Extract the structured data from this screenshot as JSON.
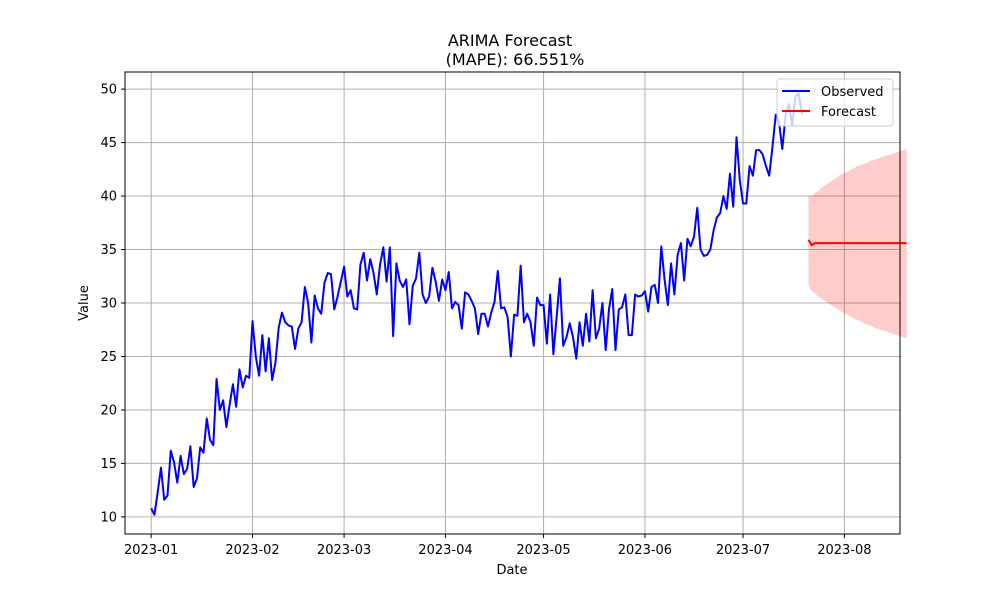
{
  "chart_data": {
    "type": "line",
    "title": "ARIMA Forecast",
    "subtitle": "(MAPE): 66.551%",
    "xlabel": "Date",
    "ylabel": "Value",
    "grid": true,
    "legend_position": "top-right",
    "x_start_date": "2023-01-01",
    "xlim": [
      -8,
      229
    ],
    "ylim": [
      8.4,
      51.6
    ],
    "x_ticks": [
      {
        "day": 0,
        "label": "2023-01"
      },
      {
        "day": 31,
        "label": "2023-02"
      },
      {
        "day": 59,
        "label": "2023-03"
      },
      {
        "day": 90,
        "label": "2023-04"
      },
      {
        "day": 120,
        "label": "2023-05"
      },
      {
        "day": 151,
        "label": "2023-06"
      },
      {
        "day": 181,
        "label": "2023-07"
      },
      {
        "day": 212,
        "label": "2023-08"
      }
    ],
    "y_ticks": [
      10,
      15,
      20,
      25,
      30,
      35,
      40,
      45,
      50
    ],
    "colors": {
      "observed": "#0000ff",
      "forecast": "#ff0000",
      "band": "#ff0000",
      "grid": "#b0b0b0"
    },
    "series": [
      {
        "name": "Observed",
        "x_start": 0,
        "values": [
          10.8,
          10.2,
          12.3,
          14.6,
          11.6,
          12.0,
          16.2,
          15.1,
          13.2,
          15.7,
          14.0,
          14.5,
          16.6,
          12.8,
          13.6,
          16.5,
          16.0,
          19.2,
          17.2,
          16.7,
          22.9,
          20.0,
          20.9,
          18.4,
          20.5,
          22.4,
          20.3,
          23.8,
          22.1,
          23.2,
          23.0,
          28.3,
          25.0,
          23.2,
          27.0,
          23.6,
          26.7,
          22.8,
          24.4,
          27.7,
          29.1,
          28.2,
          27.9,
          27.8,
          25.7,
          27.6,
          28.2,
          31.5,
          30.0,
          26.3,
          30.7,
          29.5,
          29.0,
          31.9,
          32.8,
          32.7,
          29.4,
          30.6,
          32.0,
          33.4,
          30.6,
          31.2,
          29.5,
          29.4,
          33.6,
          34.7,
          32.1,
          34.1,
          32.8,
          30.8,
          33.6,
          35.2,
          32.0,
          35.2,
          26.9,
          33.7,
          32.1,
          31.5,
          32.2,
          28.0,
          31.6,
          32.3,
          34.7,
          30.8,
          30.0,
          30.6,
          33.3,
          32.0,
          30.2,
          32.2,
          31.2,
          32.9,
          29.5,
          30.1,
          29.8,
          27.6,
          31.0,
          30.8,
          30.2,
          29.5,
          27.1,
          29.0,
          29.0,
          27.8,
          29.1,
          30.1,
          33.0,
          29.5,
          29.6,
          28.7,
          25.0,
          28.9,
          28.8,
          33.5,
          28.2,
          29.0,
          28.2,
          26.0,
          30.5,
          29.8,
          29.8,
          26.2,
          30.8,
          25.2,
          28.7,
          32.3,
          26.0,
          26.8,
          28.1,
          26.8,
          24.8,
          28.2,
          26.0,
          29.0,
          26.4,
          31.2,
          26.7,
          27.6,
          30.0,
          25.6,
          29.4,
          31.3,
          25.6,
          29.4,
          29.6,
          30.8,
          27.0,
          27.0,
          30.8,
          30.6,
          30.7,
          31.1,
          29.2,
          31.5,
          31.7,
          30.0,
          35.3,
          32.2,
          29.8,
          33.7,
          30.8,
          34.5,
          35.6,
          32.1,
          36.0,
          35.3,
          36.2,
          38.9,
          35.0,
          34.4,
          34.5,
          35.0,
          36.8,
          38.0,
          38.4,
          40.0,
          38.8,
          42.1,
          39.0,
          45.5,
          41.5,
          39.3,
          39.3,
          42.8,
          41.9,
          44.3,
          44.3,
          43.9,
          42.8,
          41.9,
          44.6,
          47.6,
          46.9,
          44.4,
          47.5,
          48.6,
          46.6,
          49.3,
          49.6,
          47.7
        ]
      },
      {
        "name": "Forecast",
        "x_start": 201,
        "values": [
          35.9,
          35.4,
          35.6,
          35.6,
          35.6,
          35.6,
          35.6,
          35.6,
          35.6,
          35.6,
          35.6,
          35.6,
          35.6,
          35.6,
          35.6,
          35.6,
          35.6,
          35.6,
          35.6,
          35.6,
          35.6,
          35.6,
          35.6,
          35.6,
          35.6,
          35.6,
          35.6,
          35.6,
          35.6,
          35.6,
          35.6
        ]
      }
    ],
    "confidence_band": {
      "x_start": 201,
      "upper": [
        40.0,
        40.0,
        40.3,
        40.5,
        40.8,
        41.0,
        41.2,
        41.4,
        41.6,
        41.8,
        42.0,
        42.2,
        42.3,
        42.5,
        42.6,
        42.8,
        42.9,
        43.0,
        43.1,
        43.3,
        43.4,
        43.5,
        43.6,
        43.7,
        43.8,
        43.9,
        44.0,
        44.1,
        44.2,
        44.3,
        44.4
      ],
      "lower": [
        31.6,
        31.1,
        30.9,
        30.6,
        30.4,
        30.2,
        30.0,
        29.8,
        29.6,
        29.4,
        29.2,
        29.0,
        28.9,
        28.7,
        28.5,
        28.4,
        28.3,
        28.1,
        28.0,
        27.9,
        27.7,
        27.6,
        27.5,
        27.4,
        27.3,
        27.2,
        27.1,
        27.0,
        26.9,
        26.8,
        26.7
      ]
    }
  }
}
